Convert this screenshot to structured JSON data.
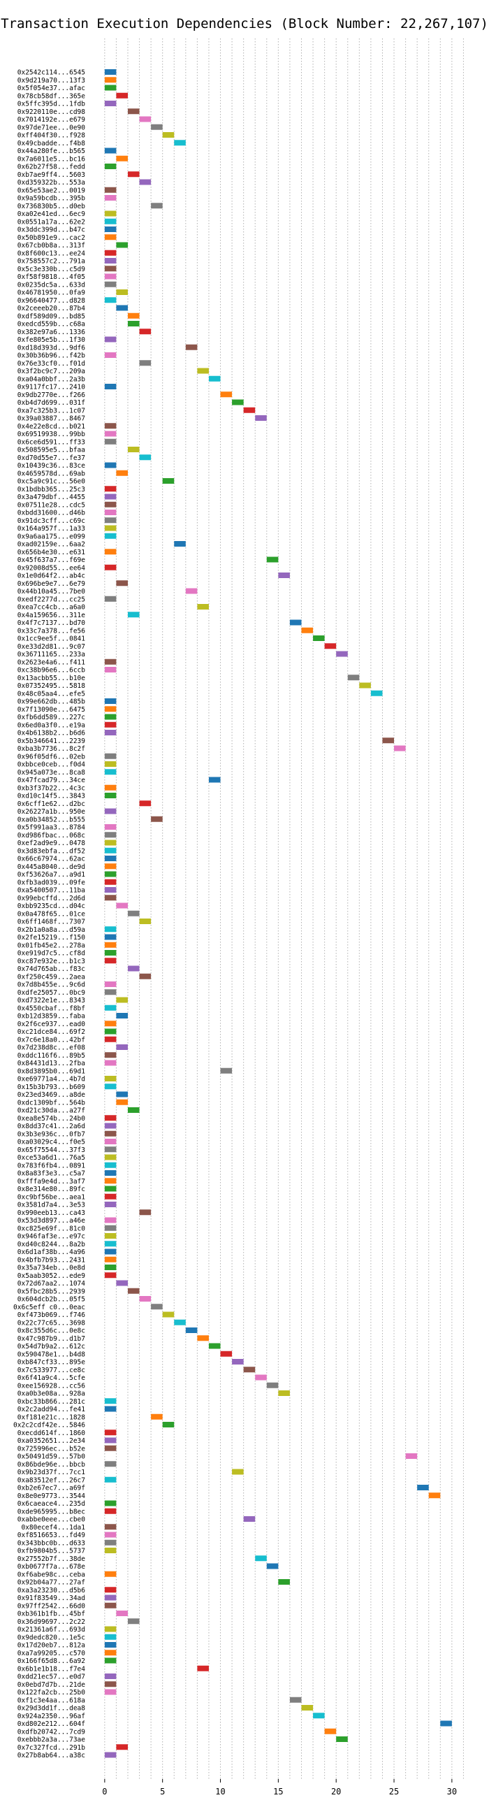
{
  "chart_data": {
    "type": "bar",
    "title": "Transaction Execution Dependencies (Block Number: 22,267,107)",
    "xlabel": "",
    "ylabel": "",
    "xlim": [
      -1.5,
      32
    ],
    "x_ticks": [
      0,
      5,
      10,
      15,
      20,
      25,
      30
    ],
    "grid": true,
    "legend": "none",
    "palette": [
      "#1f77b4",
      "#ff7f0e",
      "#2ca02c",
      "#d62728",
      "#9467bd",
      "#8c564b",
      "#e377c2",
      "#7f7f7f",
      "#bcbd22",
      "#17becf"
    ],
    "transactions": [
      {
        "hash": "0x2542c114...6545",
        "start": 0
      },
      {
        "hash": "0x9d219a70...13f3",
        "start": 0
      },
      {
        "hash": "0x5f054e37...afac",
        "start": 0
      },
      {
        "hash": "0x78cb58df...365e",
        "start": 1
      },
      {
        "hash": "0x5ffc395d...1fdb",
        "start": 0
      },
      {
        "hash": "0x9220110e...cd98",
        "start": 2
      },
      {
        "hash": "0x7014192e...e679",
        "start": 3
      },
      {
        "hash": "0x97de71ee...0e90",
        "start": 4
      },
      {
        "hash": "0xff404f30...f928",
        "start": 5
      },
      {
        "hash": "0x49cbadde...f4b8",
        "start": 6
      },
      {
        "hash": "0x44a280fe...b565",
        "start": 0
      },
      {
        "hash": "0x7a6011e5...bc16",
        "start": 1
      },
      {
        "hash": "0x62b27f58...fedd",
        "start": 0
      },
      {
        "hash": "0xb7ae9ff4...5603",
        "start": 2
      },
      {
        "hash": "0xd359322b...553a",
        "start": 3
      },
      {
        "hash": "0x65e53ae2...0019",
        "start": 0
      },
      {
        "hash": "0x9a59bcdb...395b",
        "start": 0
      },
      {
        "hash": "0x736830b5...d0eb",
        "start": 4
      },
      {
        "hash": "0xa02e41ed...6ec9",
        "start": 0
      },
      {
        "hash": "0x0551a17a...62e2",
        "start": 0
      },
      {
        "hash": "0x3ddc399d...b47c",
        "start": 0
      },
      {
        "hash": "0x50b891e9...cac2",
        "start": 0
      },
      {
        "hash": "0x67cb0b8a...313f",
        "start": 1
      },
      {
        "hash": "0x8f600c13...ee24",
        "start": 0
      },
      {
        "hash": "0x758557c2...791a",
        "start": 0
      },
      {
        "hash": "0x5c3e330b...c5d9",
        "start": 0
      },
      {
        "hash": "0xf58f9818...4f05",
        "start": 0
      },
      {
        "hash": "0x0235dc5a...633d",
        "start": 0
      },
      {
        "hash": "0x46781950...0fa9",
        "start": 1
      },
      {
        "hash": "0x96640477...d828",
        "start": 0
      },
      {
        "hash": "0x2ceeeb20...87b4",
        "start": 1
      },
      {
        "hash": "0xdf589d09...bd85",
        "start": 2
      },
      {
        "hash": "0xedcd559b...c68a",
        "start": 2
      },
      {
        "hash": "0x382e97a6...1336",
        "start": 3
      },
      {
        "hash": "0xfe805e5b...1f30",
        "start": 0
      },
      {
        "hash": "0xd18d393d...9df6",
        "start": 7
      },
      {
        "hash": "0x30b36b96...f42b",
        "start": 0
      },
      {
        "hash": "0x76e33cf0...f01d",
        "start": 3
      },
      {
        "hash": "0x3f2bc9c7...209a",
        "start": 8
      },
      {
        "hash": "0xa04a0bbf...2a3b",
        "start": 9
      },
      {
        "hash": "0x9117fc17...2410",
        "start": 0
      },
      {
        "hash": "0x9db2770e...f266",
        "start": 10
      },
      {
        "hash": "0xb4d7d699...031f",
        "start": 11
      },
      {
        "hash": "0xa7c325b3...1c07",
        "start": 12
      },
      {
        "hash": "0x39a03887...8467",
        "start": 13
      },
      {
        "hash": "0x4e22e8cd...b021",
        "start": 0
      },
      {
        "hash": "0x69519938...99bb",
        "start": 0
      },
      {
        "hash": "0x6ce6d591...ff33",
        "start": 0
      },
      {
        "hash": "0x508595e5...bfaa",
        "start": 2
      },
      {
        "hash": "0xd70d55e7...fe37",
        "start": 3
      },
      {
        "hash": "0x10439c36...83ce",
        "start": 0
      },
      {
        "hash": "0x4659578d...69ab",
        "start": 1
      },
      {
        "hash": "0xc5a9c91c...56e0",
        "start": 5
      },
      {
        "hash": "0x1bdbb365...25c3",
        "start": 0
      },
      {
        "hash": "0x3a479dbf...4455",
        "start": 0
      },
      {
        "hash": "0x07511e28...cdc5",
        "start": 0
      },
      {
        "hash": "0xbdd31600...d46b",
        "start": 0
      },
      {
        "hash": "0x91dc3cff...c69c",
        "start": 0
      },
      {
        "hash": "0x164a957f...1a33",
        "start": 0
      },
      {
        "hash": "0x9a6aa175...e099",
        "start": 0
      },
      {
        "hash": "0xad02159e...6aa2",
        "start": 6
      },
      {
        "hash": "0x656b4e30...e631",
        "start": 0
      },
      {
        "hash": "0x45f637a7...f69e",
        "start": 14
      },
      {
        "hash": "0x92008d55...ee64",
        "start": 0
      },
      {
        "hash": "0x1e0d64f2...ab4c",
        "start": 15
      },
      {
        "hash": "0x696be9e7...6e79",
        "start": 1
      },
      {
        "hash": "0x44b10a45...7be0",
        "start": 7
      },
      {
        "hash": "0xedf2277d...cc25",
        "start": 0
      },
      {
        "hash": "0xea7cc4cb...a6a0",
        "start": 8
      },
      {
        "hash": "0x4a159656...311e",
        "start": 2
      },
      {
        "hash": "0x4f7c7137...bd70",
        "start": 16
      },
      {
        "hash": "0x33c7a378...fe56",
        "start": 17
      },
      {
        "hash": "0x1cc9ee5f...0841",
        "start": 18
      },
      {
        "hash": "0xe33d2d81...9c07",
        "start": 19
      },
      {
        "hash": "0x36711165...233a",
        "start": 20
      },
      {
        "hash": "0x2623e4a6...f411",
        "start": 0
      },
      {
        "hash": "0xc38b96e6...6ccb",
        "start": 0
      },
      {
        "hash": "0x13acbb55...b10e",
        "start": 21
      },
      {
        "hash": "0x07352495...5818",
        "start": 22
      },
      {
        "hash": "0x48c05aa4...efe5",
        "start": 23
      },
      {
        "hash": "0x99e662db...485b",
        "start": 0
      },
      {
        "hash": "0x7f13090e...6475",
        "start": 0
      },
      {
        "hash": "0xfb6dd589...227c",
        "start": 0
      },
      {
        "hash": "0x6ed0a3f0...e19a",
        "start": 0
      },
      {
        "hash": "0x4b6138b2...b6d6",
        "start": 0
      },
      {
        "hash": "0x5b346641...2239",
        "start": 24
      },
      {
        "hash": "0xba3b7736...8c2f",
        "start": 25
      },
      {
        "hash": "0x96f05df6...02eb",
        "start": 0
      },
      {
        "hash": "0xbbce0ceb...f0d4",
        "start": 0
      },
      {
        "hash": "0x945a073e...8ca8",
        "start": 0
      },
      {
        "hash": "0x47fcad79...34ce",
        "start": 9
      },
      {
        "hash": "0xb3f37b22...4c3c",
        "start": 0
      },
      {
        "hash": "0xd10c14f5...3843",
        "start": 0
      },
      {
        "hash": "0x6cff1e62...d2bc",
        "start": 3
      },
      {
        "hash": "0x26227a1b...950e",
        "start": 0
      },
      {
        "hash": "0xa0b34852...b555",
        "start": 4
      },
      {
        "hash": "0x5f991aa3...8784",
        "start": 0
      },
      {
        "hash": "0xd986fbac...068c",
        "start": 0
      },
      {
        "hash": "0xef2ad9e9...0478",
        "start": 0
      },
      {
        "hash": "0x3d83ebfa...df52",
        "start": 0
      },
      {
        "hash": "0x66c67974...62ac",
        "start": 0
      },
      {
        "hash": "0x445a8040...de9d",
        "start": 0
      },
      {
        "hash": "0xf53626a7...a9d1",
        "start": 0
      },
      {
        "hash": "0xfb3ad039...09fe",
        "start": 0
      },
      {
        "hash": "0xa5400507...11ba",
        "start": 0
      },
      {
        "hash": "0x99ebcffd...2d6d",
        "start": 0
      },
      {
        "hash": "0xbb9235cd...d04c",
        "start": 1
      },
      {
        "hash": "0x0a478f65...01ce",
        "start": 2
      },
      {
        "hash": "0x6ff1468f...7307",
        "start": 3
      },
      {
        "hash": "0x2b1a0a8a...d59a",
        "start": 0
      },
      {
        "hash": "0x2fe15219...f150",
        "start": 0
      },
      {
        "hash": "0x01fb45e2...278a",
        "start": 0
      },
      {
        "hash": "0xe919d7c5...cf8d",
        "start": 0
      },
      {
        "hash": "0xc87e932e...b1c3",
        "start": 0
      },
      {
        "hash": "0x74d765ab...f83c",
        "start": 2
      },
      {
        "hash": "0xf250c459...2aea",
        "start": 3
      },
      {
        "hash": "0x7d8b455e...9c6d",
        "start": 0
      },
      {
        "hash": "0xdfe25057...0bc9",
        "start": 0
      },
      {
        "hash": "0xd7322e1e...8343",
        "start": 1
      },
      {
        "hash": "0x4550cbaf...f8bf",
        "start": 0
      },
      {
        "hash": "0xb12d3859...faba",
        "start": 1
      },
      {
        "hash": "0x2f6ce937...ead0",
        "start": 0
      },
      {
        "hash": "0xc21dce84...69f2",
        "start": 0
      },
      {
        "hash": "0x7c6e18a0...42bf",
        "start": 0
      },
      {
        "hash": "0x7d238d8c...ef08",
        "start": 1
      },
      {
        "hash": "0xddc116f6...89b5",
        "start": 0
      },
      {
        "hash": "0x84431d13...2fba",
        "start": 0
      },
      {
        "hash": "0x8d3895b0...69d1",
        "start": 10
      },
      {
        "hash": "0xe69771a4...4b7d",
        "start": 0
      },
      {
        "hash": "0x15b3b793...b609",
        "start": 0
      },
      {
        "hash": "0x23ed3469...a8de",
        "start": 1
      },
      {
        "hash": "0xdc1309bf...564b",
        "start": 1
      },
      {
        "hash": "0xd21c30da...a27f",
        "start": 2
      },
      {
        "hash": "0xea8e574b...24b0",
        "start": 0
      },
      {
        "hash": "0x8dd37c41...2a6d",
        "start": 0
      },
      {
        "hash": "0x3b3e936c...0fb7",
        "start": 0
      },
      {
        "hash": "0xa03029c4...f0e5",
        "start": 0
      },
      {
        "hash": "0x65f75544...37f3",
        "start": 0
      },
      {
        "hash": "0xce53a6d1...76a5",
        "start": 0
      },
      {
        "hash": "0x783f6fb4...0891",
        "start": 0
      },
      {
        "hash": "0x8a83f3e3...c5a7",
        "start": 0
      },
      {
        "hash": "0xfffa9e4d...3af7",
        "start": 0
      },
      {
        "hash": "0x8e314e80...89fc",
        "start": 0
      },
      {
        "hash": "0xc9bf56be...aea1",
        "start": 0
      },
      {
        "hash": "0x3581d7a4...3e53",
        "start": 0
      },
      {
        "hash": "0x990eeb13...ca43",
        "start": 3
      },
      {
        "hash": "0x53d3d897...a46e",
        "start": 0
      },
      {
        "hash": "0xc825e69f...81c0",
        "start": 0
      },
      {
        "hash": "0x946faf3e...e97c",
        "start": 0
      },
      {
        "hash": "0xd40c8244...8a2b",
        "start": 0
      },
      {
        "hash": "0x6d1af38b...4a96",
        "start": 0
      },
      {
        "hash": "0x4bfb7b93...2431",
        "start": 0
      },
      {
        "hash": "0x35a734eb...0e8d",
        "start": 0
      },
      {
        "hash": "0x5aab3052...ede9",
        "start": 0
      },
      {
        "hash": "0x72d67aa2...1074",
        "start": 1
      },
      {
        "hash": "0x5fbc28b5...2939",
        "start": 2
      },
      {
        "hash": "0x604dcb2b...05f5",
        "start": 3
      },
      {
        "hash": "0x6c5eff c0...0eac",
        "start": 4
      },
      {
        "hash": "0xf473b069...f746",
        "start": 5
      },
      {
        "hash": "0x22c77c65...3698",
        "start": 6
      },
      {
        "hash": "0x8c355d6c...0e8c",
        "start": 7
      },
      {
        "hash": "0x47c987b9...d1b7",
        "start": 8
      },
      {
        "hash": "0x54d7b9a2...612c",
        "start": 9
      },
      {
        "hash": "0x590478e1...b4d8",
        "start": 10
      },
      {
        "hash": "0xb847cf33...895e",
        "start": 11
      },
      {
        "hash": "0x7c533977...ce8c",
        "start": 12
      },
      {
        "hash": "0x6f41a9c4...5cfe",
        "start": 13
      },
      {
        "hash": "0xee156928...cc56",
        "start": 14
      },
      {
        "hash": "0xa0b3e08a...928a",
        "start": 15
      },
      {
        "hash": "0xbc33b866...281c",
        "start": 0
      },
      {
        "hash": "0x2c2add94...fe41",
        "start": 0
      },
      {
        "hash": "0xf181e21c...1828",
        "start": 4
      },
      {
        "hash": "0x2c2cdf42e...5846",
        "start": 5
      },
      {
        "hash": "0xecdd614f...1860",
        "start": 0
      },
      {
        "hash": "0xa0352651...2e34",
        "start": 0
      },
      {
        "hash": "0x725996ec...b52e",
        "start": 0
      },
      {
        "hash": "0x50491d59...57b0",
        "start": 26
      },
      {
        "hash": "0x86bde96e...bbcb",
        "start": 0
      },
      {
        "hash": "0x9b23d37f...7cc1",
        "start": 11
      },
      {
        "hash": "0xa83512ef...26c7",
        "start": 0
      },
      {
        "hash": "0xb2e67ec7...a69f",
        "start": 27
      },
      {
        "hash": "0x8e0e9773...3544",
        "start": 28
      },
      {
        "hash": "0x6caeace4...235d",
        "start": 0
      },
      {
        "hash": "0xde965995...b8ec",
        "start": 0
      },
      {
        "hash": "0xabbe0eee...cbe0",
        "start": 12
      },
      {
        "hash": "0x80ecef4...1da1",
        "start": 0
      },
      {
        "hash": "0xf8516653...fd49",
        "start": 0
      },
      {
        "hash": "0x343bbc0b...d633",
        "start": 0
      },
      {
        "hash": "0xfb9804b5...5737",
        "start": 0
      },
      {
        "hash": "0x27552b7f...38de",
        "start": 13
      },
      {
        "hash": "0xb0677f7a...678e",
        "start": 14
      },
      {
        "hash": "0xf6abe98c...ceba",
        "start": 0
      },
      {
        "hash": "0x92b04a77...27af",
        "start": 15
      },
      {
        "hash": "0xa3a23230...d5b6",
        "start": 0
      },
      {
        "hash": "0x91f83549...34ad",
        "start": 0
      },
      {
        "hash": "0x97ff2542...66d0",
        "start": 0
      },
      {
        "hash": "0xb361b1fb...45bf",
        "start": 1
      },
      {
        "hash": "0x36d99697...2c22",
        "start": 2
      },
      {
        "hash": "0x21361a6f...693d",
        "start": 0
      },
      {
        "hash": "0x9dedc820...1e5c",
        "start": 0
      },
      {
        "hash": "0x17d20eb7...812a",
        "start": 0
      },
      {
        "hash": "0xa7a99205...c570",
        "start": 0
      },
      {
        "hash": "0x166f65d8...6a92",
        "start": 0
      },
      {
        "hash": "0x6b1e1b18...f7e4",
        "start": 8
      },
      {
        "hash": "0xdd21ec57...e0d7",
        "start": 0
      },
      {
        "hash": "0x0ebd7d7b...21de",
        "start": 0
      },
      {
        "hash": "0x122fa2cb...25b0",
        "start": 0
      },
      {
        "hash": "0xf1c3e4aa...618a",
        "start": 16
      },
      {
        "hash": "0x29d3dd1f...dea8",
        "start": 17
      },
      {
        "hash": "0x924a2350...96af",
        "start": 18
      },
      {
        "hash": "0xd802e212...604f",
        "start": 29
      },
      {
        "hash": "0xdfb20742...7cd9",
        "start": 19
      },
      {
        "hash": "0xebbb2a3a...73ae",
        "start": 20
      },
      {
        "hash": "0x7c327fcd...291b",
        "start": 1
      },
      {
        "hash": "0x27b8ab64...a38c",
        "start": 0
      }
    ]
  }
}
